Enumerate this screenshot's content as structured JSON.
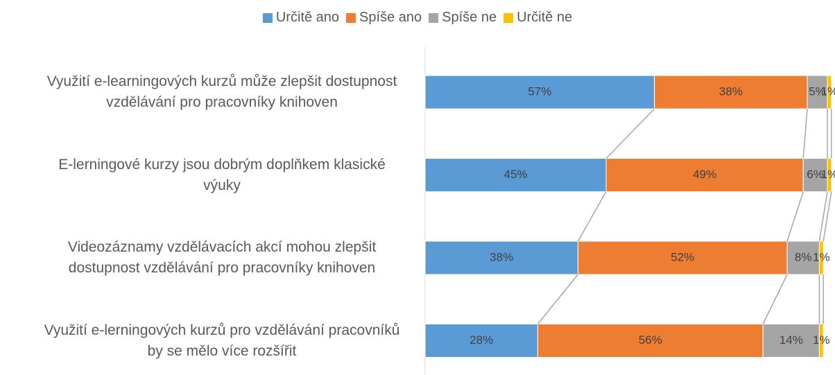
{
  "chart_data": {
    "type": "stacked-bar-horizontal",
    "categories": [
      "Využití e-learningových kurzů může zlepšit dostupnost vzdělávání pro pracovníky knihoven",
      "E-lerningové kurzy jsou dobrým doplňkem klasické výuky",
      "Videozáznamy vzdělávacích akcí mohou zlepšit dostupnost vzdělávání pro pracovníky knihoven",
      "Využití e-lerningových kurzů pro vzdělávání pracovníků by se mělo více rozšířit"
    ],
    "series": [
      {
        "name": "Určitě ano",
        "color": "#5b9bd5",
        "values": [
          57,
          45,
          38,
          28
        ],
        "value_labels": [
          "57%",
          "45%",
          "38%",
          "28%"
        ]
      },
      {
        "name": "Spíše ano",
        "color": "#ed7d31",
        "values": [
          38,
          49,
          52,
          56
        ],
        "value_labels": [
          "38%",
          "49%",
          "52%",
          "56%"
        ]
      },
      {
        "name": "Spíše ne",
        "color": "#a5a5a5",
        "values": [
          5,
          6,
          8,
          14
        ],
        "value_labels": [
          "5%",
          "6%",
          "8%",
          "14%"
        ]
      },
      {
        "name": "Určitě ne",
        "color": "#ffc000",
        "values": [
          1,
          1,
          1,
          1
        ],
        "value_labels": [
          "1%",
          "1%",
          "1%",
          "1%"
        ]
      }
    ],
    "xlim": [
      0,
      100
    ],
    "legend": "top"
  }
}
